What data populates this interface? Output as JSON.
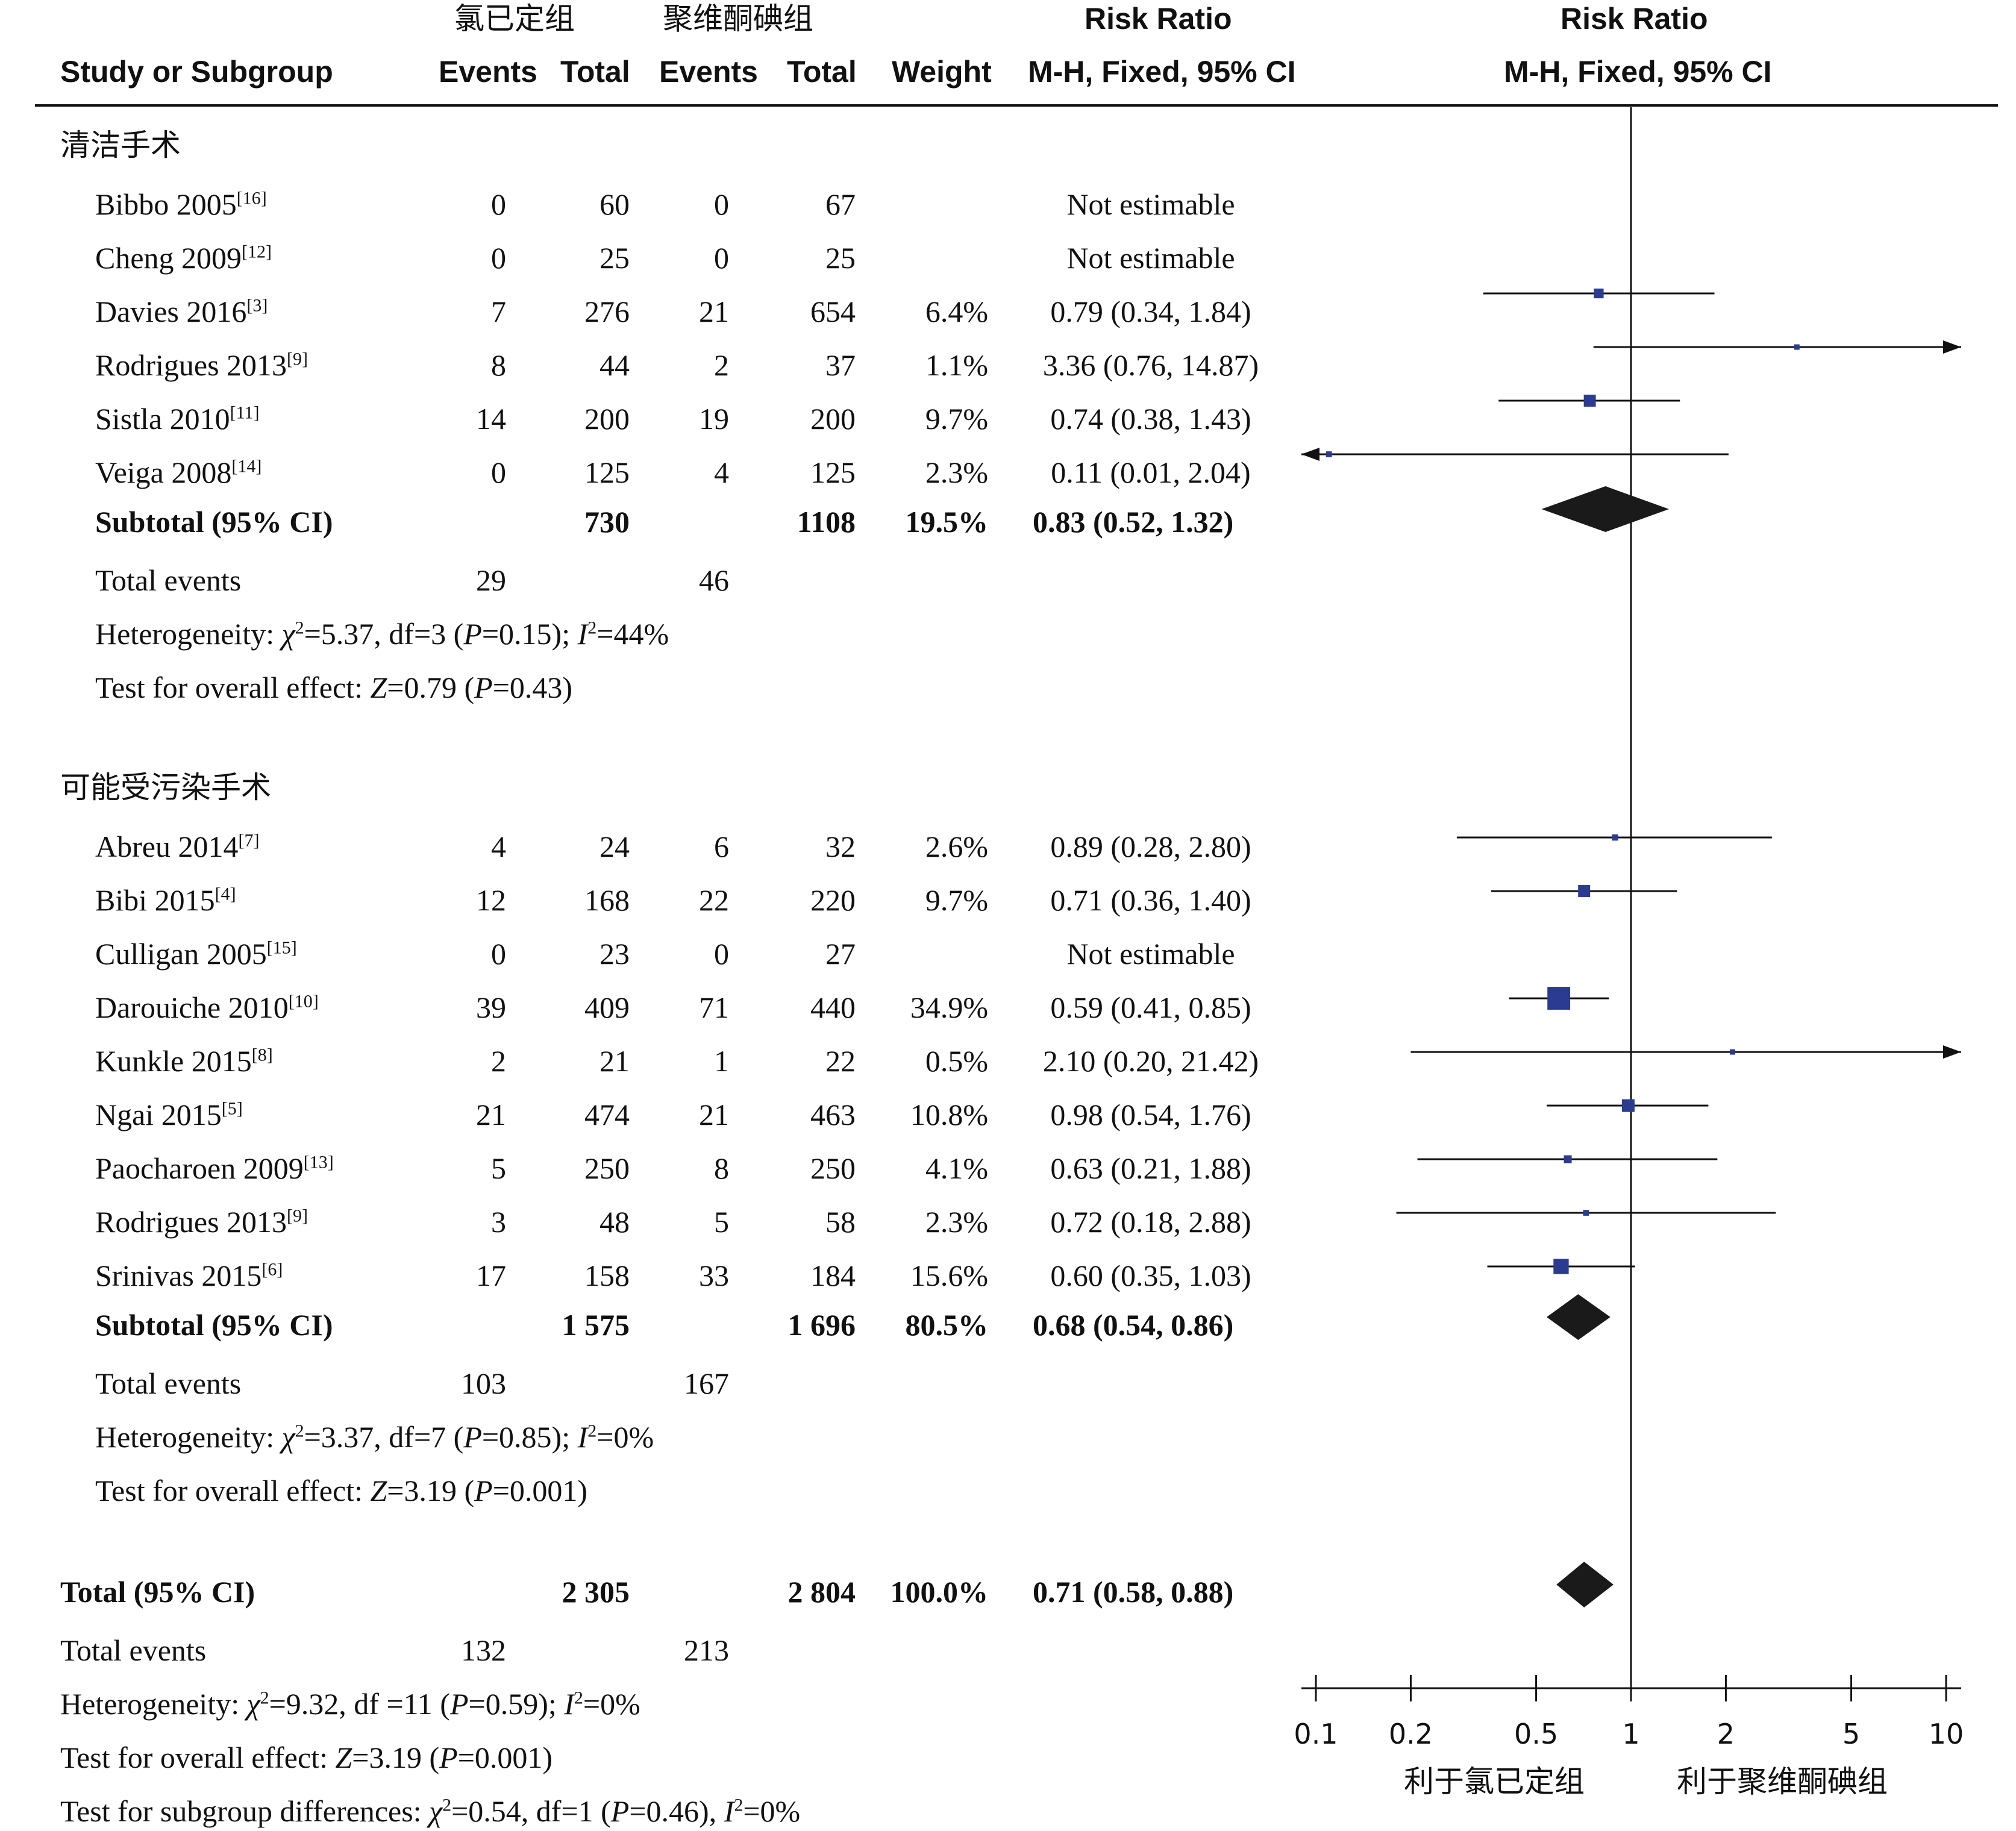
{
  "header": {
    "group1": "氯已定组",
    "group2": "聚维酮碘组",
    "risk_ratio_1": "Risk Ratio",
    "risk_ratio_2": "Risk Ratio",
    "study_col": "Study or Subgroup",
    "events1": "Events",
    "total1": "Total",
    "events2": "Events",
    "total2": "Total",
    "weight": "Weight",
    "method1": "M-H, Fixed, 95% CI",
    "method2": "M-H, Fixed, 95% CI"
  },
  "subgroups": [
    {
      "title": "清洁手术",
      "studies": [
        {
          "name": "Bibbo 2005",
          "ref": "[16]",
          "e1": "0",
          "t1": "60",
          "e2": "0",
          "t2": "67",
          "weight": "",
          "ci": "Not estimable"
        },
        {
          "name": "Cheng 2009",
          "ref": "[12]",
          "e1": "0",
          "t1": "25",
          "e2": "0",
          "t2": "25",
          "weight": "",
          "ci": "Not estimable"
        },
        {
          "name": "Davies 2016",
          "ref": "[3]",
          "e1": "7",
          "t1": "276",
          "e2": "21",
          "t2": "654",
          "weight": "6.4%",
          "ci": "0.79 (0.34, 1.84)"
        },
        {
          "name": "Rodrigues 2013",
          "ref": "[9]",
          "e1": "8",
          "t1": "44",
          "e2": "2",
          "t2": "37",
          "weight": "1.1%",
          "ci": "3.36 (0.76, 14.87)"
        },
        {
          "name": "Sistla 2010",
          "ref": "[11]",
          "e1": "14",
          "t1": "200",
          "e2": "19",
          "t2": "200",
          "weight": "9.7%",
          "ci": "0.74 (0.38, 1.43)"
        },
        {
          "name": "Veiga 2008",
          "ref": "[14]",
          "e1": "0",
          "t1": "125",
          "e2": "4",
          "t2": "125",
          "weight": "2.3%",
          "ci": "0.11 (0.01, 2.04)"
        }
      ],
      "subtotal": {
        "label": "Subtotal (95% CI)",
        "t1": "730",
        "t2": "1108",
        "weight": "19.5%",
        "ci": "0.83 (0.52, 1.32)"
      },
      "total_events": {
        "label": "Total events",
        "e1": "29",
        "e2": "46"
      },
      "heterogeneity": {
        "label": "Heterogeneity: ",
        "chi": "χ",
        "chi_val": "=5.37, df=3 (",
        "p": "P",
        "p_val": "=0.15); ",
        "i": "I",
        "i_val": "=44%"
      },
      "overall": {
        "label": "Test for overall effect: ",
        "z": "Z",
        "z_val": "=0.79 (",
        "p": "P",
        "p_val": "=0.43)"
      }
    },
    {
      "title": "可能受污染手术",
      "studies": [
        {
          "name": "Abreu 2014",
          "ref": "[7]",
          "e1": "4",
          "t1": "24",
          "e2": "6",
          "t2": "32",
          "weight": "2.6%",
          "ci": "0.89 (0.28, 2.80)"
        },
        {
          "name": "Bibi 2015",
          "ref": "[4]",
          "e1": "12",
          "t1": "168",
          "e2": "22",
          "t2": "220",
          "weight": "9.7%",
          "ci": "0.71 (0.36, 1.40)"
        },
        {
          "name": "Culligan 2005",
          "ref": "[15]",
          "e1": "0",
          "t1": "23",
          "e2": "0",
          "t2": "27",
          "weight": "",
          "ci": "Not estimable"
        },
        {
          "name": "Darouiche 2010",
          "ref": "[10]",
          "e1": "39",
          "t1": "409",
          "e2": "71",
          "t2": "440",
          "weight": "34.9%",
          "ci": "0.59 (0.41, 0.85)"
        },
        {
          "name": "Kunkle 2015",
          "ref": "[8]",
          "e1": "2",
          "t1": "21",
          "e2": "1",
          "t2": "22",
          "weight": "0.5%",
          "ci": "2.10 (0.20, 21.42)"
        },
        {
          "name": "Ngai 2015",
          "ref": "[5]",
          "e1": "21",
          "t1": "474",
          "e2": "21",
          "t2": "463",
          "weight": "10.8%",
          "ci": "0.98 (0.54, 1.76)"
        },
        {
          "name": "Paocharoen 2009",
          "ref": "[13]",
          "e1": "5",
          "t1": "250",
          "e2": "8",
          "t2": "250",
          "weight": "4.1%",
          "ci": "0.63 (0.21, 1.88)"
        },
        {
          "name": "Rodrigues 2013",
          "ref": "[9]",
          "e1": "3",
          "t1": "48",
          "e2": "5",
          "t2": "58",
          "weight": "2.3%",
          "ci": "0.72 (0.18, 2.88)"
        },
        {
          "name": "Srinivas 2015",
          "ref": "[6]",
          "e1": "17",
          "t1": "158",
          "e2": "33",
          "t2": "184",
          "weight": "15.6%",
          "ci": "0.60 (0.35, 1.03)"
        }
      ],
      "subtotal": {
        "label": "Subtotal (95% CI)",
        "t1": "1 575",
        "t2": "1 696",
        "weight": "80.5%",
        "ci": "0.68 (0.54, 0.86)"
      },
      "total_events": {
        "label": "Total events",
        "e1": "103",
        "e2": "167"
      },
      "heterogeneity": {
        "label": "Heterogeneity: ",
        "chi": "χ",
        "chi_val": "=3.37, df=7 (",
        "p": "P",
        "p_val": "=0.85); ",
        "i": "I",
        "i_val": "=0%"
      },
      "overall": {
        "label": "Test for overall effect: ",
        "z": "Z",
        "z_val": "=3.19 (",
        "p": "P",
        "p_val": "=0.001)"
      }
    }
  ],
  "total": {
    "label": "Total (95% CI)",
    "t1": "2 305",
    "t2": "2 804",
    "weight": "100.0%",
    "ci": "0.71 (0.58, 0.88)",
    "events_label": "Total events",
    "e1": "132",
    "e2": "213",
    "heterogeneity": {
      "label": "Heterogeneity:  ",
      "chi": "χ",
      "chi_val": "=9.32, df =11 (",
      "p": "P",
      "p_val": "=0.59); ",
      "i": "I",
      "i_val": "=0%"
    },
    "overall": {
      "label": "Test for overall effect: ",
      "z": "Z",
      "z_val": "=3.19 (",
      "p": "P",
      "p_val": "=0.001)"
    },
    "subgroup_diff": {
      "label": "Test for subgroup differences:  ",
      "chi": "χ",
      "chi_val": "=0.54, df=1 (",
      "p": "P",
      "p_val": "=0.46), ",
      "i": "I",
      "i_val": "=0%"
    }
  },
  "chart_data": {
    "type": "forest",
    "scale": "log",
    "xlim": [
      0.1,
      10
    ],
    "ticks": [
      "0.1",
      "0.2",
      "0.5",
      "1",
      "2",
      "5",
      "10"
    ],
    "tick_values": [
      0.1,
      0.2,
      0.5,
      1,
      2,
      5,
      10
    ],
    "favours_left": "利于氯已定组",
    "favours_right": "利于聚维酮碘组",
    "marker_color": "#2b3b8f",
    "diamond_color": "#1a1a1a",
    "points": [
      {
        "study": "Davies 2016",
        "rr": 0.79,
        "lo": 0.34,
        "hi": 1.84,
        "weight": 6.4
      },
      {
        "study": "Rodrigues 2013",
        "rr": 3.36,
        "lo": 0.76,
        "hi": 14.87,
        "weight": 1.1
      },
      {
        "study": "Sistla 2010",
        "rr": 0.74,
        "lo": 0.38,
        "hi": 1.43,
        "weight": 9.7
      },
      {
        "study": "Veiga 2008",
        "rr": 0.11,
        "lo": 0.01,
        "hi": 2.04,
        "weight": 2.3
      },
      {
        "study": "Abreu 2014",
        "rr": 0.89,
        "lo": 0.28,
        "hi": 2.8,
        "weight": 2.6
      },
      {
        "study": "Bibi 2015",
        "rr": 0.71,
        "lo": 0.36,
        "hi": 1.4,
        "weight": 9.7
      },
      {
        "study": "Darouiche 2010",
        "rr": 0.59,
        "lo": 0.41,
        "hi": 0.85,
        "weight": 34.9
      },
      {
        "study": "Kunkle 2015",
        "rr": 2.1,
        "lo": 0.2,
        "hi": 21.42,
        "weight": 0.5
      },
      {
        "study": "Ngai 2015",
        "rr": 0.98,
        "lo": 0.54,
        "hi": 1.76,
        "weight": 10.8
      },
      {
        "study": "Paocharoen 2009",
        "rr": 0.63,
        "lo": 0.21,
        "hi": 1.88,
        "weight": 4.1
      },
      {
        "study": "Rodrigues 2013",
        "rr": 0.72,
        "lo": 0.18,
        "hi": 2.88,
        "weight": 2.3
      },
      {
        "study": "Srinivas 2015",
        "rr": 0.6,
        "lo": 0.35,
        "hi": 1.03,
        "weight": 15.6
      }
    ],
    "diamonds": [
      {
        "label": "Subtotal 清洁手术",
        "rr": 0.83,
        "lo": 0.52,
        "hi": 1.32
      },
      {
        "label": "Subtotal 可能受污染手术",
        "rr": 0.68,
        "lo": 0.54,
        "hi": 0.86
      },
      {
        "label": "Total",
        "rr": 0.71,
        "lo": 0.58,
        "hi": 0.88
      }
    ]
  }
}
